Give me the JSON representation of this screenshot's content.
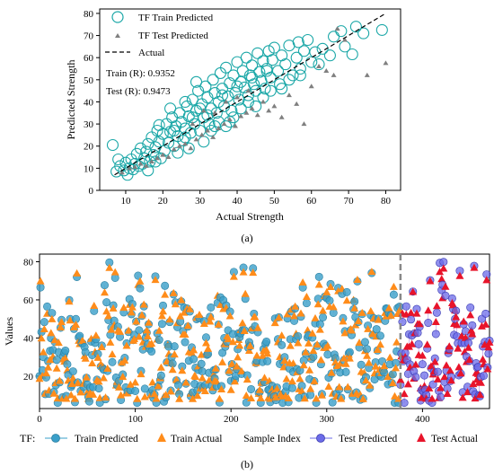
{
  "chart_data": [
    {
      "type": "scatter",
      "panel_label": "(a)",
      "xlabel": "Actual Strength",
      "ylabel": "Predicted Strength",
      "xlim": [
        3,
        84
      ],
      "ylim": [
        0,
        82
      ],
      "xticks": [
        10,
        20,
        30,
        40,
        50,
        60,
        70,
        80
      ],
      "yticks": [
        0,
        10,
        20,
        30,
        40,
        50,
        60,
        70,
        80
      ],
      "legend": {
        "position": "top-left",
        "items": [
          "TF Train Predicted",
          "TF Test Predicted",
          "Actual"
        ]
      },
      "annotations": [
        "Train (R): 0.9352",
        "Test (R): 0.9473"
      ],
      "colors": {
        "train": "#1aa7a7",
        "test": "#7f7f7f",
        "actual": "#000000"
      },
      "series": [
        {
          "name": "TF Train Predicted",
          "points": [
            [
              6.5,
              20.5
            ],
            [
              7.5,
              8.5
            ],
            [
              8.5,
              11
            ],
            [
              9.5,
              9
            ],
            [
              10,
              12.5
            ],
            [
              11,
              10
            ],
            [
              11.5,
              14
            ],
            [
              12.5,
              12
            ],
            [
              13,
              16.5
            ],
            [
              13.5,
              11
            ],
            [
              14,
              19
            ],
            [
              15,
              14.5
            ],
            [
              15.5,
              17.5
            ],
            [
              16,
              21
            ],
            [
              16.5,
              13
            ],
            [
              17,
              24
            ],
            [
              17.5,
              16
            ],
            [
              18,
              19.5
            ],
            [
              18.5,
              27
            ],
            [
              19,
              22
            ],
            [
              19.5,
              14.5
            ],
            [
              20,
              25.5
            ],
            [
              20.5,
              18
            ],
            [
              21,
              30
            ],
            [
              21.5,
              21.5
            ],
            [
              22,
              26.5
            ],
            [
              22.5,
              33
            ],
            [
              23,
              20
            ],
            [
              23.5,
              29
            ],
            [
              24,
              24.5
            ],
            [
              24.5,
              35
            ],
            [
              25,
              31
            ],
            [
              25.5,
              22.5
            ],
            [
              26,
              28
            ],
            [
              26.5,
              38
            ],
            [
              27,
              33.5
            ],
            [
              27.5,
              26
            ],
            [
              28,
              41
            ],
            [
              28.5,
              30
            ],
            [
              29,
              36
            ],
            [
              29.5,
              45
            ],
            [
              30,
              27
            ],
            [
              30.5,
              39
            ],
            [
              31,
              33
            ],
            [
              31.5,
              47
            ],
            [
              32,
              42
            ],
            [
              32.5,
              30
            ],
            [
              33,
              37
            ],
            [
              33.5,
              50
            ],
            [
              34,
              44
            ],
            [
              34.5,
              35
            ],
            [
              35,
              40
            ],
            [
              35.5,
              53
            ],
            [
              36,
              46
            ],
            [
              36.5,
              38
            ],
            [
              37,
              55.5
            ],
            [
              37.5,
              42.5
            ],
            [
              38,
              48.5
            ],
            [
              38.5,
              36
            ],
            [
              39,
              52
            ],
            [
              39.5,
              44
            ],
            [
              40,
              58
            ],
            [
              40.5,
              41
            ],
            [
              41,
              49
            ],
            [
              41.5,
              54
            ],
            [
              42,
              46.5
            ],
            [
              42.5,
              60
            ],
            [
              43,
              43
            ],
            [
              43.5,
              52
            ],
            [
              44,
              56.5
            ],
            [
              44.5,
              48
            ],
            [
              45,
              45
            ],
            [
              45.5,
              62
            ],
            [
              46,
              53.5
            ],
            [
              46.5,
              49.5
            ],
            [
              47,
              58.5
            ],
            [
              47.5,
              46
            ],
            [
              48,
              55
            ],
            [
              48.5,
              63
            ],
            [
              49,
              51
            ],
            [
              49.5,
              59
            ],
            [
              50,
              64.5
            ],
            [
              51,
              54
            ],
            [
              51.5,
              48
            ],
            [
              52,
              61
            ],
            [
              53,
              57
            ],
            [
              54,
              65.5
            ],
            [
              55,
              52
            ],
            [
              56,
              60
            ],
            [
              56.5,
              67
            ],
            [
              57,
              55
            ],
            [
              58,
              63
            ],
            [
              59,
              68
            ],
            [
              60,
              58
            ],
            [
              61,
              62.5
            ],
            [
              62,
              57
            ],
            [
              63,
              64
            ],
            [
              65,
              61
            ],
            [
              66,
              69.5
            ],
            [
              68,
              72
            ],
            [
              69,
              65
            ],
            [
              71,
              61.5
            ],
            [
              72,
              74
            ],
            [
              74,
              71
            ],
            [
              79,
              72.5
            ],
            [
              8,
              14
            ],
            [
              10.5,
              7
            ],
            [
              12,
              9.5
            ],
            [
              14.5,
              12
            ],
            [
              16,
              9
            ],
            [
              18,
              13
            ],
            [
              19,
              29.5
            ],
            [
              22,
              37
            ],
            [
              24,
              17
            ],
            [
              26,
              40
            ],
            [
              27,
              19
            ],
            [
              29,
              49
            ],
            [
              31,
              22
            ],
            [
              33,
              27
            ],
            [
              35,
              31
            ],
            [
              37,
              29
            ],
            [
              39,
              33
            ],
            [
              41,
              37
            ],
            [
              43,
              40
            ],
            [
              45,
              38
            ],
            [
              47,
              42
            ],
            [
              49,
              45
            ],
            [
              52,
              46
            ],
            [
              54,
              50
            ],
            [
              57,
              52
            ],
            [
              28,
              33
            ],
            [
              32,
              34
            ],
            [
              36,
              43
            ],
            [
              40,
              47
            ],
            [
              44,
              51
            ],
            [
              48,
              54
            ],
            [
              34,
              29
            ],
            [
              38,
              31
            ],
            [
              30,
              37
            ],
            [
              26,
              24
            ],
            [
              23,
              27
            ]
          ]
        },
        {
          "name": "TF Test Predicted",
          "points": [
            [
              9,
              8
            ],
            [
              11,
              10
            ],
            [
              12.5,
              10.5
            ],
            [
              14,
              12
            ],
            [
              15.5,
              11
            ],
            [
              17,
              13
            ],
            [
              18.5,
              14.5
            ],
            [
              20,
              16
            ],
            [
              21.5,
              15
            ],
            [
              23,
              18.5
            ],
            [
              24.5,
              20
            ],
            [
              26,
              21
            ],
            [
              27.5,
              19
            ],
            [
              29,
              23
            ],
            [
              30.5,
              25
            ],
            [
              32,
              27
            ],
            [
              33.5,
              24
            ],
            [
              35,
              28
            ],
            [
              36.5,
              30
            ],
            [
              38,
              32
            ],
            [
              39.5,
              29
            ],
            [
              41,
              33.5
            ],
            [
              42.5,
              35
            ],
            [
              44,
              37
            ],
            [
              45.5,
              34
            ],
            [
              47,
              40
            ],
            [
              48.5,
              36
            ],
            [
              50,
              38
            ],
            [
              52,
              33
            ],
            [
              54,
              43
            ],
            [
              56,
              39
            ],
            [
              58,
              30
            ],
            [
              60,
              47
            ],
            [
              62,
              56
            ],
            [
              64,
              54
            ],
            [
              66,
              52
            ],
            [
              67,
              73
            ],
            [
              69,
              68
            ],
            [
              75,
              52
            ],
            [
              80,
              57.5
            ],
            [
              34,
              35
            ],
            [
              37,
              40
            ],
            [
              40,
              42
            ],
            [
              43,
              45
            ],
            [
              28,
              30
            ],
            [
              31,
              36
            ]
          ]
        },
        {
          "name": "Actual",
          "line": [
            [
              7,
              7
            ],
            [
              80,
              80
            ]
          ]
        }
      ]
    },
    {
      "type": "line",
      "panel_label": "(b)",
      "xlabel": "Sample Index",
      "ylabel": "Values",
      "xlim": [
        0,
        470
      ],
      "ylim": [
        3,
        84
      ],
      "xticks": [
        0,
        100,
        200,
        300,
        400
      ],
      "yticks": [
        20,
        40,
        60,
        80
      ],
      "split_index": 377,
      "legend": {
        "position": "bottom-outside",
        "prefix": "TF:",
        "items": [
          "Train Predicted",
          "Train Actual",
          "Test Predicted",
          "Test Actual"
        ]
      },
      "colors": {
        "train_pred": "#3a9fc9",
        "train_actual": "#ff8c1a",
        "test_pred": "#6b6be8",
        "test_actual": "#e8142a"
      },
      "n_train": 377,
      "n_test": 94
    }
  ]
}
